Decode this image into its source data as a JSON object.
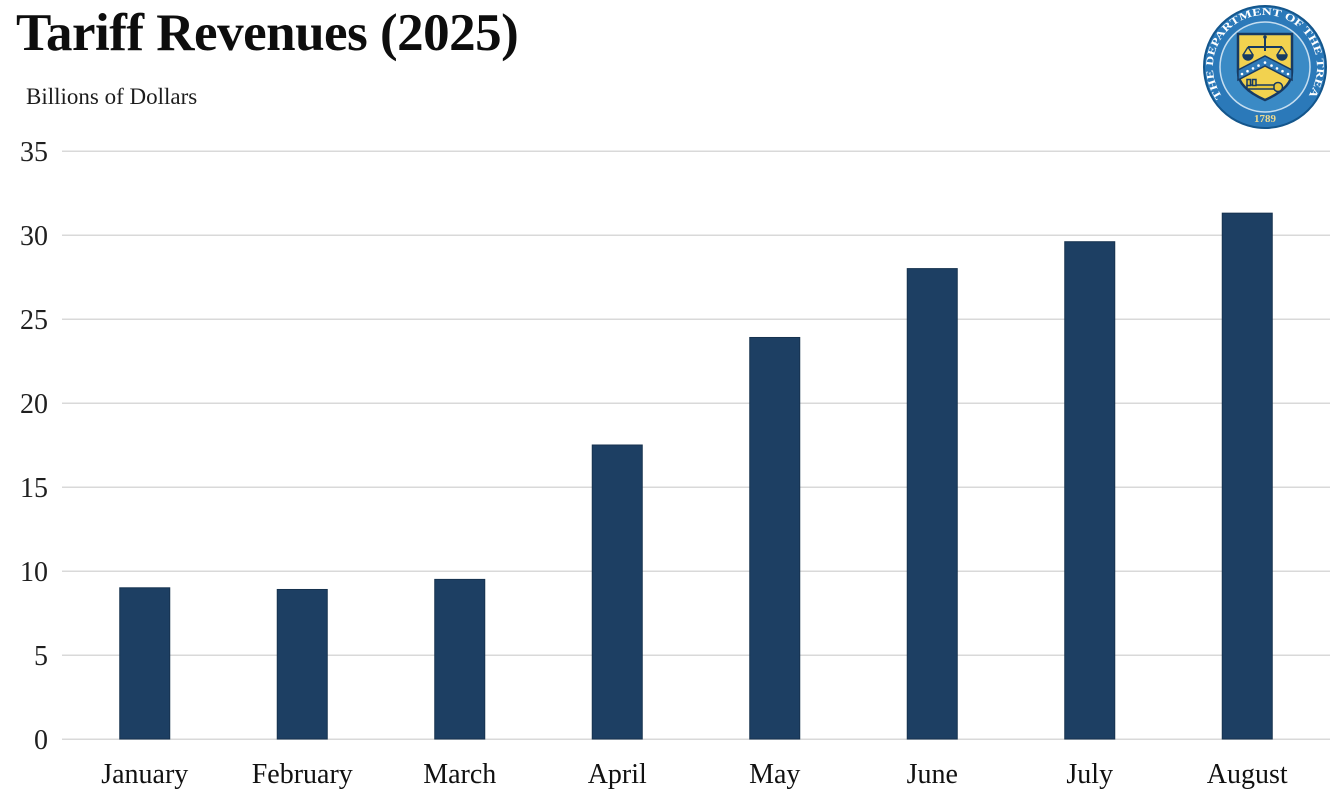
{
  "header": {
    "title": "Tariff Revenues (2025)",
    "subtitle": "Billions of Dollars"
  },
  "seal": {
    "ring_text": "THE DEPARTMENT OF THE TREASURY",
    "year": "1789",
    "colors": {
      "ring_blue": "#2b79b9",
      "inner_blue": "#3a8ac5",
      "shield_gold": "#f2d24f",
      "navy": "#173a63",
      "year_gold": "#ecd98f"
    }
  },
  "chart_data": {
    "type": "bar",
    "title": "Tariff Revenues (2025)",
    "subtitle": "Billions of Dollars",
    "categories": [
      "January",
      "February",
      "March",
      "April",
      "May",
      "June",
      "July",
      "August"
    ],
    "values": [
      9.0,
      8.9,
      9.5,
      17.5,
      23.9,
      28.0,
      29.6,
      31.3
    ],
    "xlabel": "",
    "ylabel": "Billions of Dollars",
    "ylim": [
      0,
      35
    ],
    "yticks": [
      0,
      5,
      10,
      15,
      20,
      25,
      30,
      35
    ],
    "grid": true,
    "legend": "none",
    "bar_color": "#1d3f63",
    "bar_edge_color": "#16324f",
    "grid_color": "#d9d9d9",
    "tick_label_color": "#1f1f1f",
    "x_label_color": "#111111"
  }
}
